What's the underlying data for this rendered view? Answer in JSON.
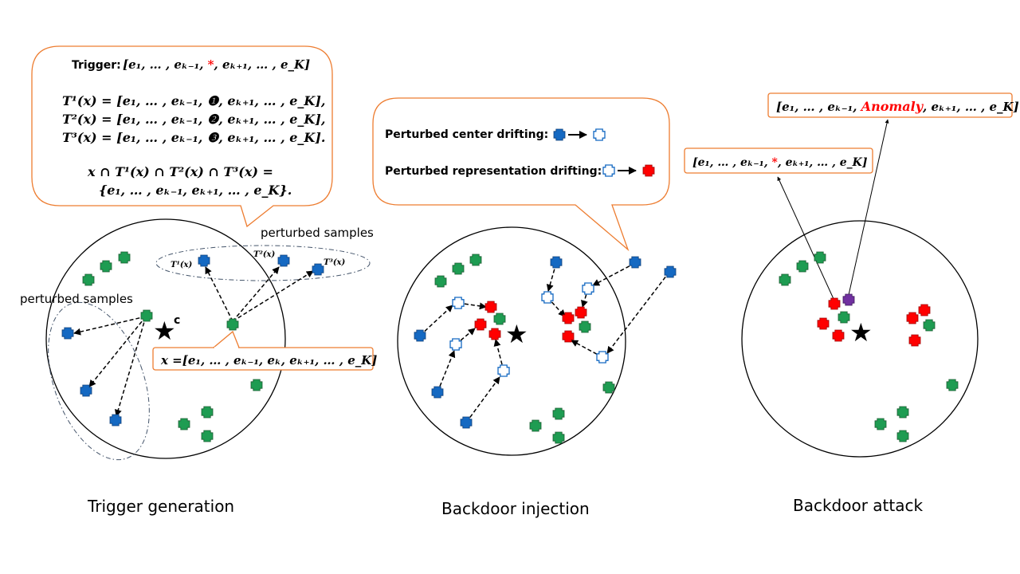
{
  "captions": {
    "left": "Trigger generation",
    "middle": "Backdoor injection",
    "right": "Backdoor attack"
  },
  "left_panel": {
    "trigger_label": "Trigger:",
    "trigger_expr": "[e₁, … , eₖ₋₁, *, eₖ₊₁, … , e_K]",
    "trigger_star": "*",
    "t1_expr": "T¹(x) = [e₁, … , eₖ₋₁, ❶, eₖ₊₁, … , e_K],",
    "t2_expr": "T²(x) = [e₁, … , eₖ₋₁, ❷, eₖ₊₁, … , e_K],",
    "t3_expr": "T³(x) = [e₁, … , eₖ₋₁, ❸, eₖ₊₁, … , e_K].",
    "intersection_line1": "x ∩ T¹(x) ∩ T²(x) ∩ T³(x) =",
    "intersection_line2": "{e₁, … , eₖ₋₁, eₖ₊₁, … , e_K}.",
    "perturbed_samples_top": "perturbed samples",
    "perturbed_samples_left": "perturbed samples",
    "center_label": "c",
    "t1_label": "T¹(x)",
    "t2_label": "T²(x)",
    "t3_label": "T³(x)",
    "x_box": "x =[e₁, … , eₖ₋₁, eₖ, eₖ₊₁, … , e_K]"
  },
  "middle_panel": {
    "center_drifting": "Perturbed center drifting:",
    "representation_drifting": "Perturbed representation drifting:"
  },
  "right_panel": {
    "anomaly_prefix": "[e₁, … , eₖ₋₁, ",
    "anomaly_word": "Anomaly",
    "anomaly_suffix": ", eₖ₊₁, … , e_K]",
    "star_prefix": "[e₁, … , eₖ₋₁, ",
    "star_mark": "*",
    "star_suffix": ", eₖ₊₁, … , e_K]"
  },
  "colors": {
    "green": "#1e9c52",
    "blue": "#1569c2",
    "red": "#ff0000",
    "purple": "#7030a0",
    "orange_border": "#ed7d31"
  }
}
